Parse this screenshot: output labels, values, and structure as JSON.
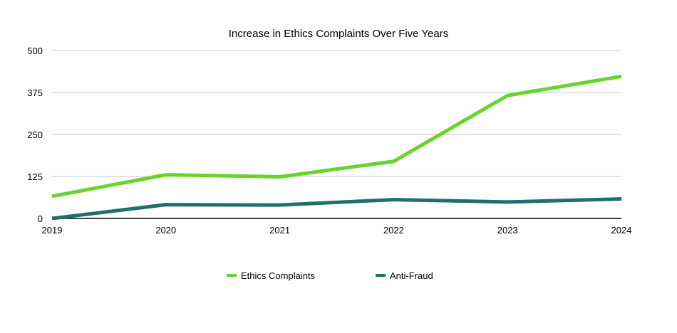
{
  "chart_data": {
    "type": "line",
    "title": "Increase in Ethics Complaints Over Five Years",
    "xlabel": "",
    "ylabel": "",
    "categories": [
      "2019",
      "2020",
      "2021",
      "2022",
      "2023",
      "2024"
    ],
    "yticks": [
      0,
      125,
      250,
      375,
      500
    ],
    "ylim": [
      0,
      500
    ],
    "grid": true,
    "legend_position": "bottom",
    "series": [
      {
        "name": "Ethics Complaints",
        "color": "#66d42a",
        "values": [
          66,
          130,
          124,
          170,
          366,
          423
        ]
      },
      {
        "name": "Anti-Fraud",
        "color": "#1e7068",
        "values": [
          0,
          41,
          40,
          56,
          49,
          58
        ]
      }
    ]
  }
}
